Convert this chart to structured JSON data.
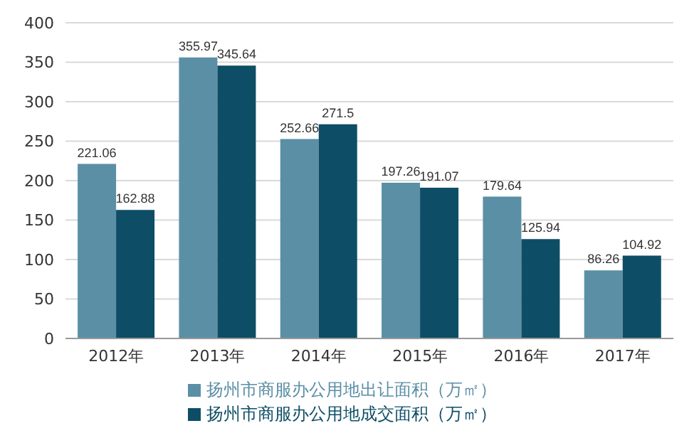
{
  "chart_data": {
    "type": "bar",
    "categories": [
      "2012年",
      "2013年",
      "2014年",
      "2015年",
      "2016年",
      "2017年"
    ],
    "series": [
      {
        "name": "扬州市商服办公用地出让面积（万㎡）",
        "color": "#5b8fa6",
        "values": [
          221.06,
          355.97,
          252.66,
          197.26,
          179.64,
          86.26
        ]
      },
      {
        "name": "扬州市商服办公用地成交面积（万㎡）",
        "color": "#0e4d66",
        "values": [
          162.88,
          345.64,
          271.5,
          191.07,
          125.94,
          104.92
        ]
      }
    ],
    "ylim": [
      0,
      400
    ],
    "yticks": [
      0,
      50,
      100,
      150,
      200,
      250,
      300,
      350,
      400
    ],
    "grid": "y",
    "legend": "bottom",
    "data_labels": true
  }
}
